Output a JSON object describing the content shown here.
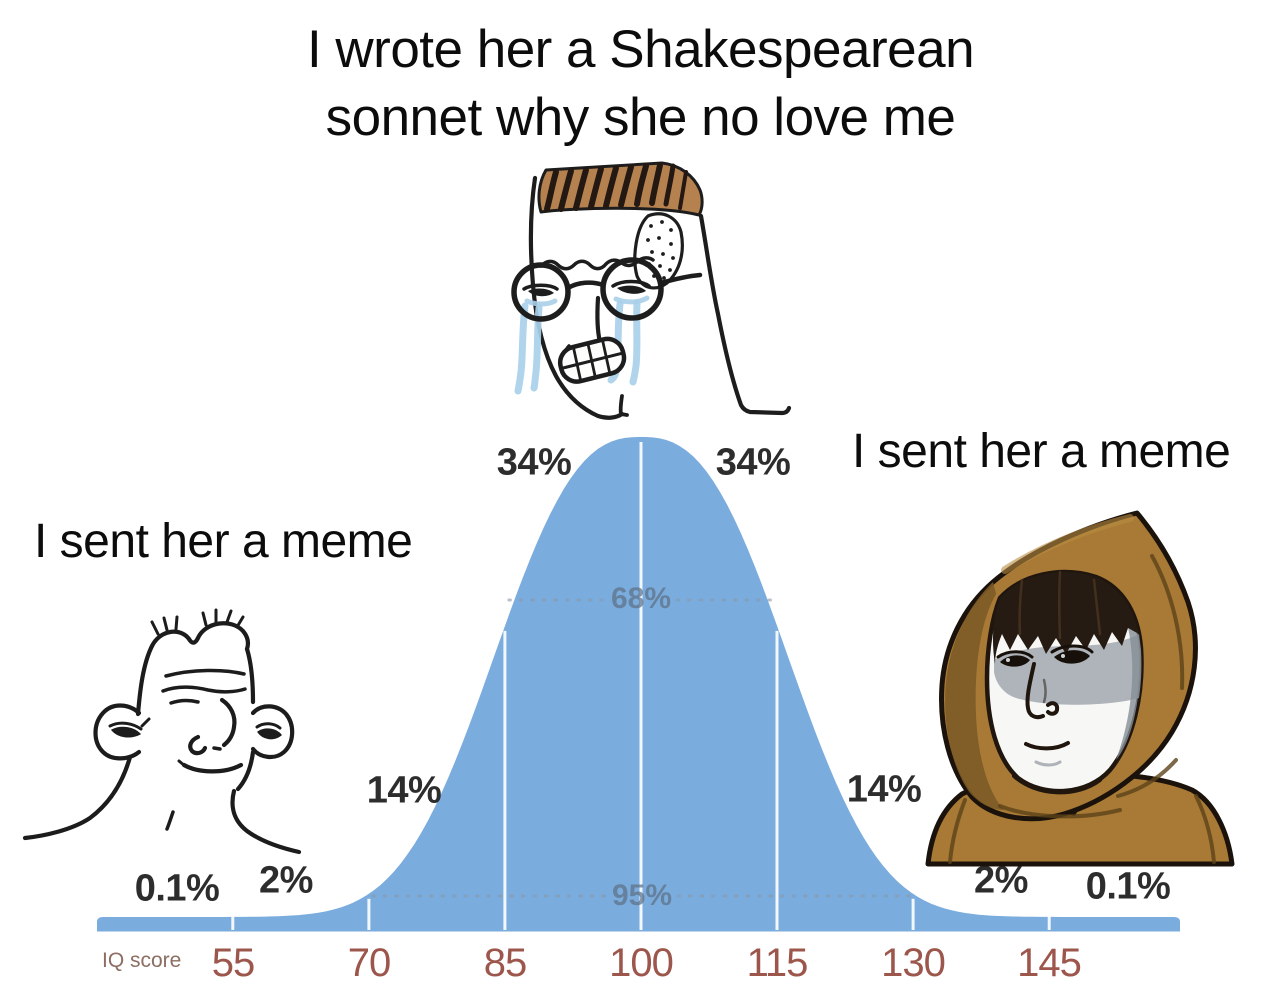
{
  "title": {
    "line1": "I wrote her a Shakespearean",
    "line2": "sonnet why she no love me"
  },
  "left_caption": "I sent her a meme",
  "right_caption": "I sent her a meme",
  "chart_data": {
    "type": "area",
    "subject": "IQ score normal distribution (bell curve)",
    "xlabel": "IQ score",
    "x_ticks": [
      55,
      70,
      85,
      100,
      115,
      130,
      145
    ],
    "mean": 100,
    "sd": 15,
    "segment_percentages": [
      "0.1%",
      "2%",
      "14%",
      "34%",
      "34%",
      "14%",
      "2%",
      "0.1%"
    ],
    "band_labels": [
      {
        "label": "68%",
        "from": 85,
        "to": 115
      },
      {
        "label": "95%",
        "from": 70,
        "to": 130
      }
    ],
    "legend": "none",
    "grid": "off",
    "curve_color": "#7aacde",
    "tick_label_color": "#9c564c",
    "axis_label_color": "#8d6e62",
    "percent_label_color": "#2d2d2d",
    "band_label_color": "#5f7186"
  }
}
